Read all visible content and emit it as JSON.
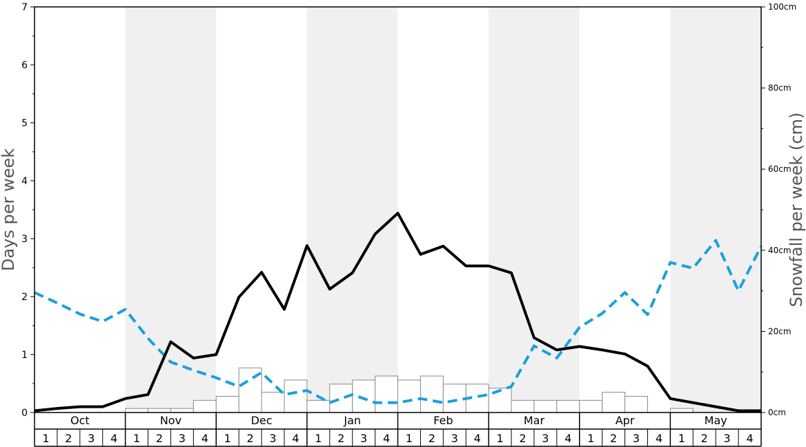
{
  "chart_data": {
    "type": "line",
    "ylabel_left": "Days per week",
    "ylabel_right": "Snowfall per week (cm)",
    "ylim_left": [
      0,
      7
    ],
    "ylim_right": [
      0,
      100
    ],
    "left_ticks": [
      "0",
      "1",
      "2",
      "3",
      "4",
      "5",
      "6",
      "7"
    ],
    "right_ticks": [
      "0cm",
      "20cm",
      "40cm",
      "60cm",
      "80cm",
      "100cm"
    ],
    "months": [
      "Oct",
      "Nov",
      "Dec",
      "Jan",
      "Feb",
      "Mar",
      "Apr",
      "May"
    ],
    "weeks": [
      "1",
      "2",
      "3",
      "4"
    ],
    "shaded_months": [
      "Nov",
      "Jan",
      "Mar",
      "May"
    ],
    "colors": {
      "shade": "#f0f0f0",
      "days_line": "#000000",
      "dashed_line": "#1a9fe0",
      "bar_fill": "#ffffff",
      "bar_stroke": "#888888"
    },
    "series": [
      {
        "style": "solid-black",
        "axis": "left",
        "values": [
          0.03,
          0.07,
          0.1,
          0.1,
          0.24,
          0.31,
          1.22,
          0.94,
          1.0,
          1.99,
          2.42,
          1.78,
          2.88,
          2.13,
          2.41,
          3.08,
          3.44,
          2.73,
          2.87,
          2.53,
          2.53,
          2.41,
          1.29,
          1.08,
          1.14,
          1.08,
          1.01,
          0.8,
          0.24,
          0.17,
          0.1,
          0.03,
          0.03
        ]
      },
      {
        "style": "dashed-blue",
        "axis": "left",
        "values": [
          2.07,
          1.89,
          1.7,
          1.57,
          1.78,
          1.28,
          0.87,
          0.73,
          0.6,
          0.45,
          0.69,
          0.31,
          0.38,
          0.17,
          0.31,
          0.17,
          0.17,
          0.24,
          0.17,
          0.24,
          0.31,
          0.45,
          1.15,
          0.94,
          1.47,
          1.71,
          2.07,
          1.69,
          2.59,
          2.49,
          2.97,
          2.1,
          2.87
        ]
      },
      {
        "style": "bars",
        "axis": "right",
        "values": [
          0,
          0,
          0,
          0,
          1,
          1,
          1,
          3,
          4,
          11,
          5,
          8,
          3,
          7,
          8,
          9,
          8,
          9,
          7,
          7,
          6,
          3,
          3,
          3,
          3,
          5,
          4,
          0,
          1,
          0,
          0,
          0
        ]
      }
    ]
  }
}
